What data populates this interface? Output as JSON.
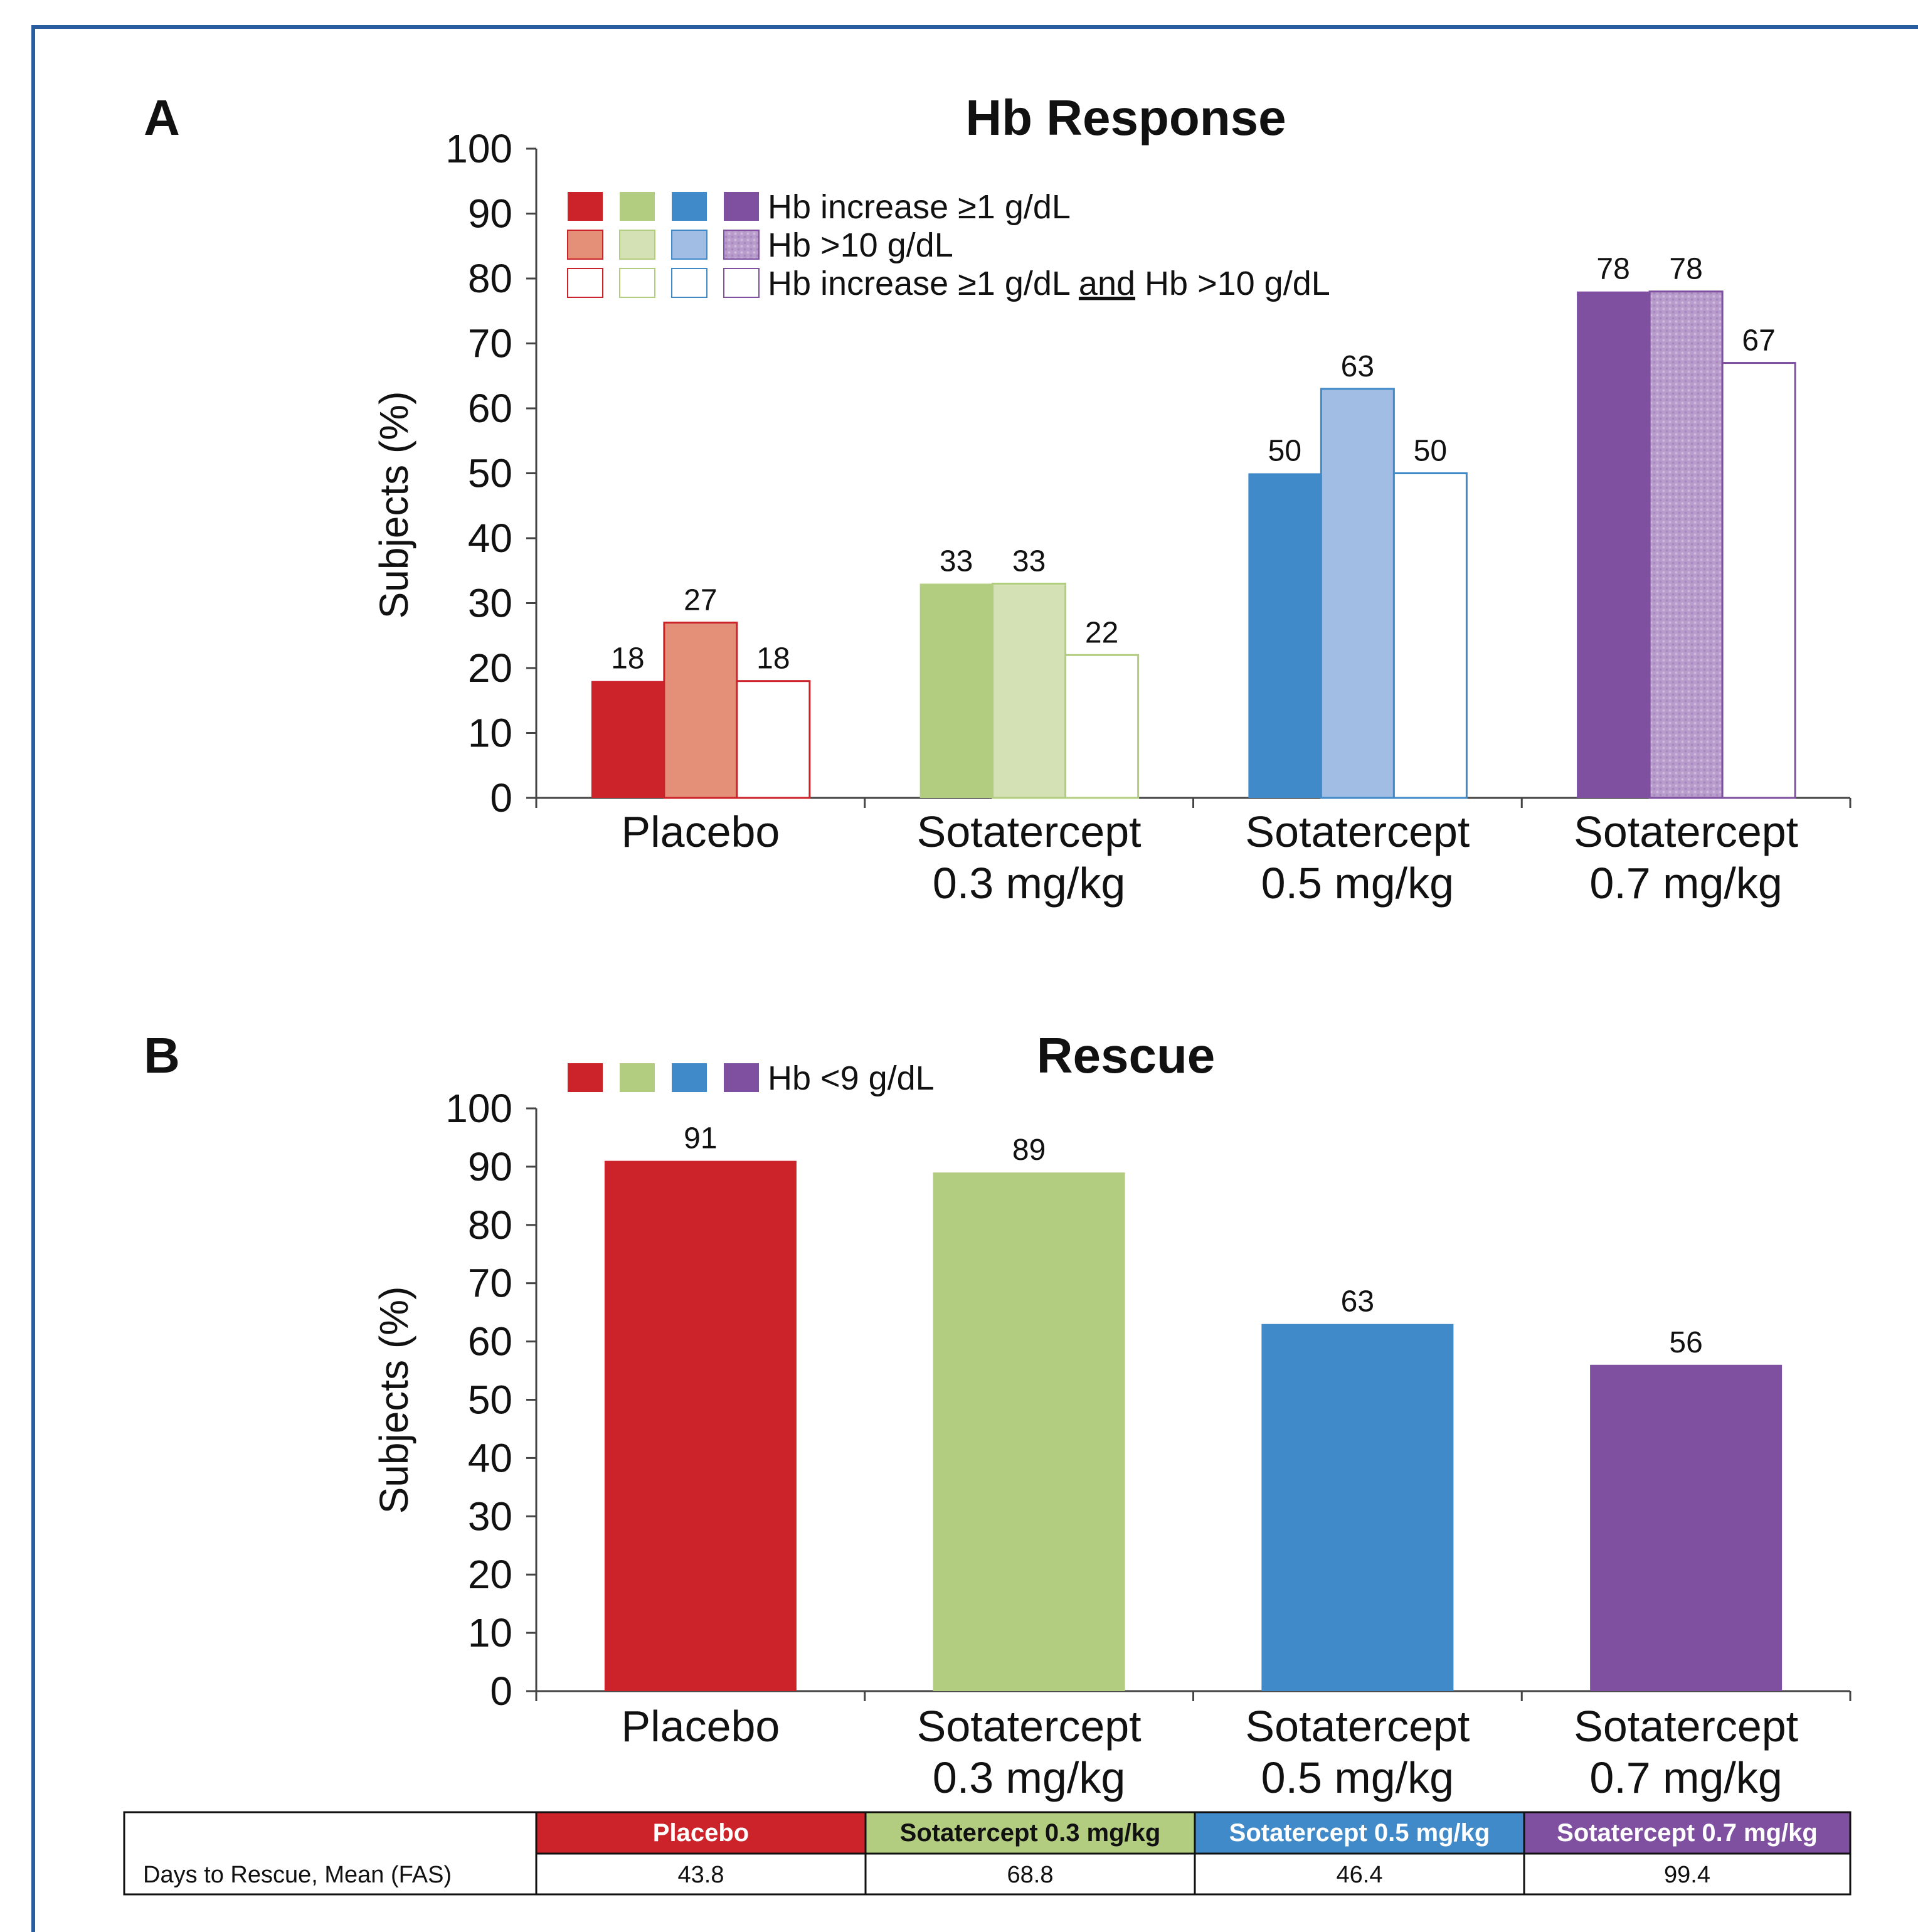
{
  "colors": {
    "frame": "#2a5d9f",
    "axis": "#444444",
    "placebo": "#cc2229",
    "placebo_light": "#e48f78",
    "s03": "#b3cd80",
    "s03_light": "#d3e1b5",
    "s05": "#418ac9",
    "s05_light": "#a2bde3",
    "s07": "#7f50a0",
    "s07_light": "#b89dcc"
  },
  "chart_data": [
    {
      "panel": "A",
      "type": "bar",
      "title": "Hb Response",
      "ylabel": "Subjects (%)",
      "ylim": [
        0,
        100
      ],
      "yticks": [
        "0",
        "10",
        "20",
        "30",
        "40",
        "50",
        "60",
        "70",
        "80",
        "90",
        "100"
      ],
      "categories": [
        [
          "Placebo"
        ],
        [
          "Sotatercept",
          "0.3 mg/kg"
        ],
        [
          "Sotatercept",
          "0.5 mg/kg"
        ],
        [
          "Sotatercept",
          "0.7 mg/kg"
        ]
      ],
      "series": [
        {
          "name": "Hb increase ≥1 g/dL",
          "style": "solid",
          "values": [
            18,
            33,
            50,
            78
          ]
        },
        {
          "name": "Hb >10 g/dL",
          "style": "light",
          "values": [
            27,
            33,
            63,
            78
          ]
        },
        {
          "name": "Hb increase ≥1 g/dL and Hb >10 g/dL",
          "style": "outline",
          "values": [
            18,
            22,
            50,
            67
          ]
        }
      ],
      "legend": {
        "placement": "top-left",
        "rows": [
          {
            "style": "solid",
            "parts": [
              {
                "text": "Hb increase ≥1 g/dL",
                "u": false
              }
            ]
          },
          {
            "style": "light",
            "parts": [
              {
                "text": "Hb >10 g/dL",
                "u": false
              }
            ]
          },
          {
            "style": "outline",
            "parts": [
              {
                "text": "Hb increase ≥1 g/dL ",
                "u": false
              },
              {
                "text": "and",
                "u": true
              },
              {
                "text": " Hb >10 g/dL",
                "u": false
              }
            ]
          }
        ]
      }
    },
    {
      "panel": "B",
      "type": "bar",
      "title": "Rescue",
      "ylabel": "Subjects (%)",
      "ylim": [
        0,
        100
      ],
      "yticks": [
        "0",
        "10",
        "20",
        "30",
        "40",
        "50",
        "60",
        "70",
        "80",
        "90",
        "100"
      ],
      "categories": [
        [
          "Placebo"
        ],
        [
          "Sotatercept",
          "0.3 mg/kg"
        ],
        [
          "Sotatercept",
          "0.5 mg/kg"
        ],
        [
          "Sotatercept",
          "0.7 mg/kg"
        ]
      ],
      "series": [
        {
          "name": "Hb <9 g/dL",
          "style": "solid",
          "values": [
            91,
            89,
            63,
            56
          ]
        }
      ],
      "legend": {
        "placement": "top-left",
        "rows": [
          {
            "style": "solid",
            "parts": [
              {
                "text": "Hb <9 g/dL",
                "u": false
              }
            ]
          }
        ]
      }
    }
  ],
  "table": {
    "headers": [
      "Placebo",
      "Sotatercept 0.3 mg/kg",
      "Sotatercept 0.5 mg/kg",
      "Sotatercept 0.7 mg/kg"
    ],
    "row_label": "Days to Rescue, Mean (FAS)",
    "values": [
      "43.8",
      "68.8",
      "46.4",
      "99.4"
    ]
  }
}
